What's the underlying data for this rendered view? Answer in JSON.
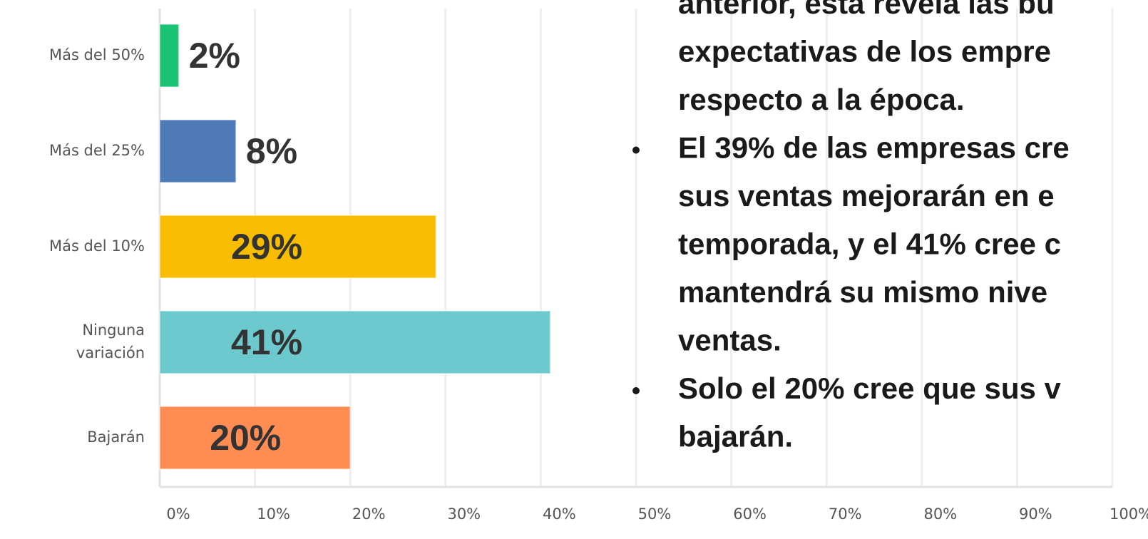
{
  "chart_data": {
    "type": "bar",
    "orientation": "horizontal",
    "categories": [
      "Más del 50%",
      "Más del 25%",
      "Más del 10%",
      "Ninguna variación",
      "Bajarán"
    ],
    "values": [
      2,
      8,
      29,
      41,
      20
    ],
    "value_labels": [
      "2%",
      "8%",
      "29%",
      "41%",
      "20%"
    ],
    "colors": [
      "#19c373",
      "#4f7ab8",
      "#f8bd00",
      "#6ccacf",
      "#ff8c52"
    ],
    "xlim": [
      0,
      100
    ],
    "xticks": [
      {
        "value": 0,
        "label": "0%"
      },
      {
        "value": 10,
        "label": "10%"
      },
      {
        "value": 20,
        "label": "20%"
      },
      {
        "value": 30,
        "label": "30%"
      },
      {
        "value": 40,
        "label": "40%"
      },
      {
        "value": 50,
        "label": "50%"
      },
      {
        "value": 60,
        "label": "60%"
      },
      {
        "value": 70,
        "label": "70%"
      },
      {
        "value": 80,
        "label": "80%"
      },
      {
        "value": 90,
        "label": "90%"
      },
      {
        "value": 100,
        "label": "100%"
      }
    ],
    "grid": true
  },
  "text_block": [
    {
      "bullet": false,
      "lines": [
        "anterior, esta revela las bu",
        "expectativas de los empre",
        "respecto a la época."
      ]
    },
    {
      "bullet": true,
      "lines": [
        "El 39% de las empresas cre",
        "sus ventas mejorarán en e",
        "temporada, y el 41% cree c",
        "mantendrá su mismo nive",
        "ventas."
      ]
    },
    {
      "bullet": true,
      "lines": [
        "Solo el 20% cree que sus v",
        "bajarán."
      ]
    }
  ]
}
